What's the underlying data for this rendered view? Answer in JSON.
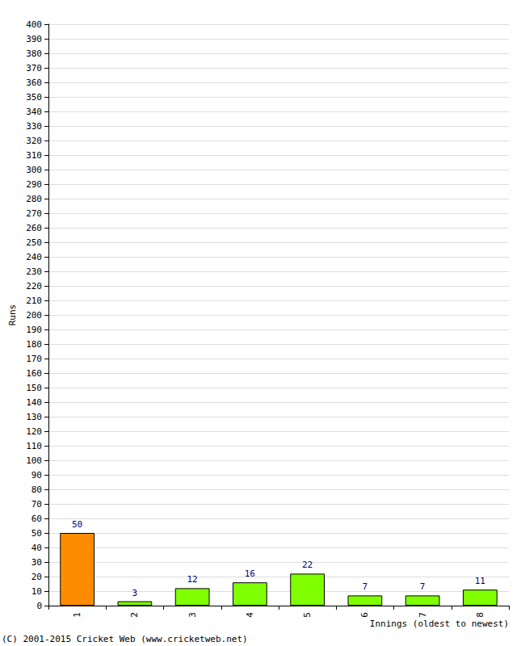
{
  "chart_data": {
    "type": "bar",
    "categories": [
      "1",
      "2",
      "3",
      "4",
      "5",
      "6",
      "7",
      "8"
    ],
    "values": [
      50,
      3,
      12,
      16,
      22,
      7,
      7,
      11
    ],
    "colors": [
      "#ff8c00",
      "#7fff00",
      "#7fff00",
      "#7fff00",
      "#7fff00",
      "#7fff00",
      "#7fff00",
      "#7fff00"
    ],
    "xlabel": "Innings (oldest to newest)",
    "ylabel": "Runs",
    "annotation": "(C) 2001-2015 Cricket Web (www.cricketweb.net)",
    "ylim": [
      0,
      400
    ],
    "yticks": [
      0,
      10,
      20,
      30,
      40,
      50,
      60,
      70,
      80,
      90,
      100,
      110,
      120,
      130,
      140,
      150,
      160,
      170,
      180,
      190,
      200,
      210,
      220,
      230,
      240,
      250,
      260,
      270,
      280,
      290,
      300,
      310,
      320,
      330,
      340,
      350,
      360,
      370,
      380,
      390,
      400
    ],
    "grid": true,
    "data_labels": true
  }
}
